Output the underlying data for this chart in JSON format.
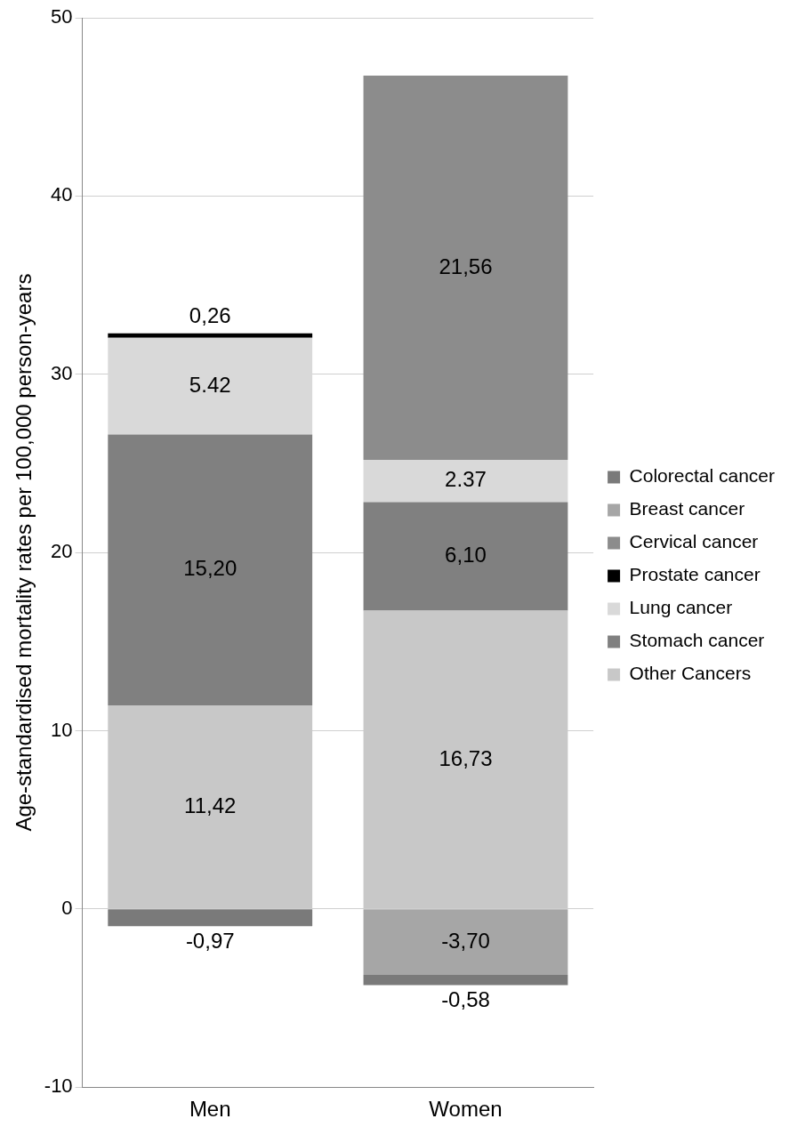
{
  "chart_data": {
    "type": "bar",
    "stacked": true,
    "ylabel": "Age-standardised mortality rates per 100,000 person-years",
    "categories": [
      "Men",
      "Women"
    ],
    "ylim": [
      -10,
      50
    ],
    "yticks": [
      -10,
      0,
      10,
      20,
      30,
      40,
      50
    ],
    "grid": "y",
    "legend": "right",
    "series": [
      {
        "name": "Other Cancers",
        "color": "#c8c8c8",
        "values": [
          11.42,
          16.73
        ],
        "value_labels": [
          "11,42",
          "16,73"
        ]
      },
      {
        "name": "Stomach cancer",
        "color": "#808080",
        "values": [
          15.2,
          6.1
        ],
        "value_labels": [
          "15,20",
          "6,10"
        ]
      },
      {
        "name": "Lung cancer",
        "color": "#d9d9d9",
        "values": [
          5.42,
          2.37
        ],
        "value_labels": [
          "5.42",
          "2.37"
        ]
      },
      {
        "name": "Prostate cancer",
        "color": "#000000",
        "values": [
          0.26,
          null
        ],
        "value_labels": [
          "0,26",
          null
        ]
      },
      {
        "name": "Cervical cancer",
        "color": "#8c8c8c",
        "values": [
          null,
          21.56
        ],
        "value_labels": [
          null,
          "21,56"
        ]
      },
      {
        "name": "Breast cancer",
        "color": "#a6a6a6",
        "values": [
          null,
          -3.7
        ],
        "value_labels": [
          null,
          "-3,70"
        ]
      },
      {
        "name": "Colorectal cancer",
        "color": "#7a7a7a",
        "values": [
          -0.97,
          -0.58
        ],
        "value_labels": [
          "-0,97",
          "-0,58"
        ]
      }
    ]
  }
}
